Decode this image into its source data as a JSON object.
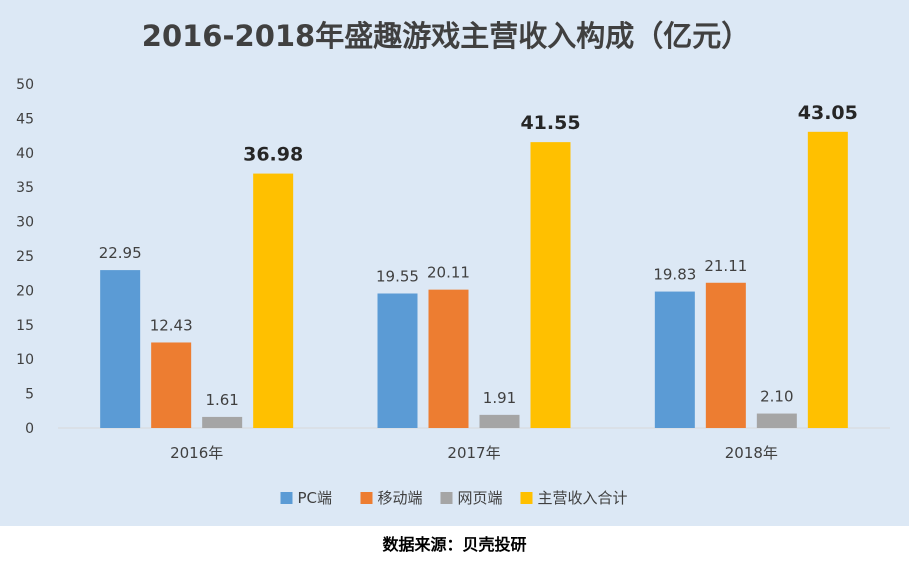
{
  "chart_data": {
    "type": "bar",
    "title": "2016-2018年盛趣游戏主营收入构成（亿元）",
    "categories": [
      "2016年",
      "2017年",
      "2018年"
    ],
    "series": [
      {
        "name": "PC端",
        "values": [
          22.95,
          19.55,
          19.83
        ],
        "labels": [
          "22.95",
          "19.55",
          "19.83"
        ],
        "color": "#5b9bd5"
      },
      {
        "name": "移动端",
        "values": [
          12.43,
          20.11,
          21.11
        ],
        "labels": [
          "12.43",
          "20.11",
          "21.11"
        ],
        "color": "#ed7d31"
      },
      {
        "name": "网页端",
        "values": [
          1.61,
          1.91,
          2.1
        ],
        "labels": [
          "1.61",
          "1.91",
          "2.10"
        ],
        "color": "#a5a5a5"
      },
      {
        "name": "主营收入合计",
        "values": [
          36.98,
          41.55,
          43.05
        ],
        "labels": [
          "36.98",
          "41.55",
          "43.05"
        ],
        "color": "#ffc000"
      }
    ],
    "ylim": [
      0,
      50
    ],
    "yticks": [
      0,
      5,
      10,
      15,
      20,
      25,
      30,
      35,
      40,
      45,
      50
    ],
    "legend": "bottom",
    "grid": false,
    "xlabel": "",
    "ylabel": ""
  },
  "source_note": "数据来源：贝壳投研",
  "colors": {
    "background": "#dce8f5",
    "axis": "#d9d9d9",
    "text": "#404040"
  }
}
